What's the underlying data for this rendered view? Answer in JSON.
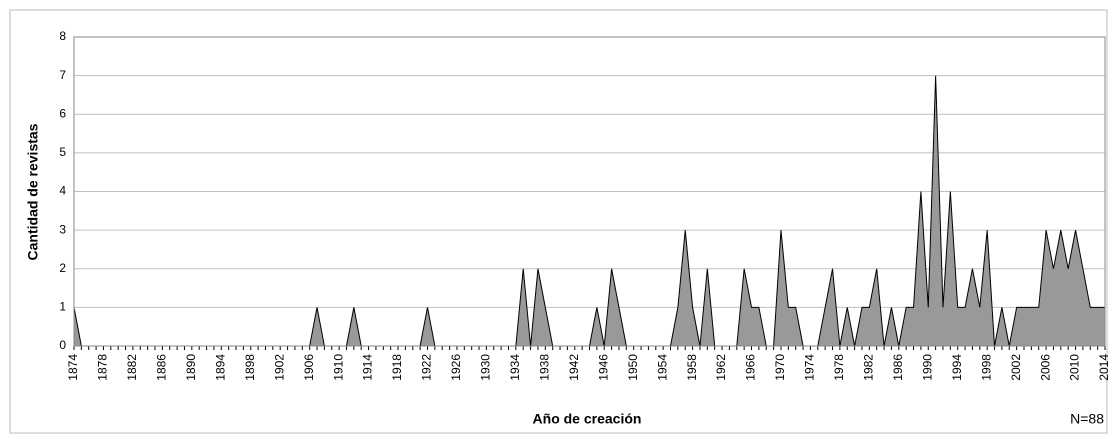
{
  "chart_data": {
    "type": "area",
    "x": [
      1874,
      1875,
      1876,
      1877,
      1878,
      1879,
      1880,
      1881,
      1882,
      1883,
      1884,
      1885,
      1886,
      1887,
      1888,
      1889,
      1890,
      1891,
      1892,
      1893,
      1894,
      1895,
      1896,
      1897,
      1898,
      1899,
      1900,
      1901,
      1902,
      1903,
      1904,
      1905,
      1906,
      1907,
      1908,
      1909,
      1910,
      1911,
      1912,
      1913,
      1914,
      1915,
      1916,
      1917,
      1918,
      1919,
      1920,
      1921,
      1922,
      1923,
      1924,
      1925,
      1926,
      1927,
      1928,
      1929,
      1930,
      1931,
      1932,
      1933,
      1934,
      1935,
      1936,
      1937,
      1938,
      1939,
      1940,
      1941,
      1942,
      1943,
      1944,
      1945,
      1946,
      1947,
      1948,
      1949,
      1950,
      1951,
      1952,
      1953,
      1954,
      1955,
      1956,
      1957,
      1958,
      1959,
      1960,
      1961,
      1962,
      1963,
      1964,
      1965,
      1966,
      1967,
      1968,
      1969,
      1970,
      1971,
      1972,
      1973,
      1974,
      1975,
      1976,
      1977,
      1978,
      1979,
      1980,
      1981,
      1982,
      1983,
      1984,
      1985,
      1986,
      1987,
      1988,
      1989,
      1990,
      1991,
      1992,
      1993,
      1994,
      1995,
      1996,
      1997,
      1998,
      1999,
      2000,
      2001,
      2002,
      2003,
      2004,
      2005,
      2006,
      2007,
      2008,
      2009,
      2010,
      2011,
      2012,
      2013,
      2014
    ],
    "values": [
      1,
      0,
      0,
      0,
      0,
      0,
      0,
      0,
      0,
      0,
      0,
      0,
      0,
      0,
      0,
      0,
      0,
      0,
      0,
      0,
      0,
      0,
      0,
      0,
      0,
      0,
      0,
      0,
      0,
      0,
      0,
      0,
      0,
      1,
      0,
      0,
      0,
      0,
      1,
      0,
      0,
      0,
      0,
      0,
      0,
      0,
      0,
      0,
      1,
      0,
      0,
      0,
      0,
      0,
      0,
      0,
      0,
      0,
      0,
      0,
      0,
      2,
      0,
      2,
      1,
      0,
      0,
      0,
      0,
      0,
      0,
      1,
      0,
      2,
      1,
      0,
      0,
      0,
      0,
      0,
      0,
      0,
      1,
      3,
      1,
      0,
      2,
      0,
      0,
      0,
      0,
      2,
      1,
      1,
      0,
      0,
      3,
      1,
      1,
      0,
      0,
      0,
      1,
      2,
      0,
      1,
      0,
      1,
      1,
      2,
      0,
      1,
      0,
      1,
      1,
      4,
      1,
      7,
      1,
      4,
      1,
      1,
      2,
      1,
      3,
      0,
      1,
      0,
      1,
      1,
      1,
      1,
      3,
      2,
      3,
      2,
      3,
      2,
      1,
      1,
      1
    ],
    "color": "#999999",
    "xlim": [
      1874,
      2014
    ],
    "xticks": [
      1874,
      1878,
      1882,
      1886,
      1890,
      1894,
      1898,
      1902,
      1906,
      1910,
      1914,
      1918,
      1922,
      1926,
      1930,
      1934,
      1938,
      1942,
      1946,
      1950,
      1954,
      1958,
      1962,
      1966,
      1970,
      1974,
      1978,
      1982,
      1986,
      1990,
      1994,
      1998,
      2002,
      2006,
      2010,
      2014
    ],
    "ylim": [
      0,
      8
    ],
    "yticks": [
      0,
      1,
      2,
      3,
      4,
      5,
      6,
      7,
      8
    ],
    "grid": true,
    "ylabel": "Cantidad de revistas",
    "xlabel": "Año de creación",
    "annotation": "N=88"
  }
}
